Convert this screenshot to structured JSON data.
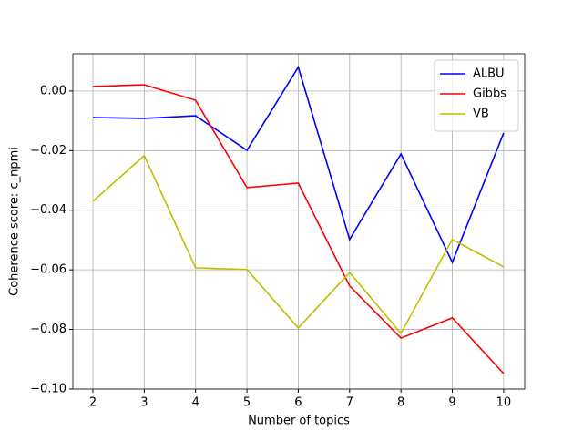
{
  "chart_data": {
    "type": "line",
    "xlabel": "Number of topics",
    "ylabel": "Coherence score: c_npmi",
    "x": [
      2,
      3,
      4,
      5,
      6,
      7,
      8,
      9,
      10
    ],
    "series": [
      {
        "name": "ALBU",
        "color": "#0000ff",
        "values": [
          -0.0089,
          -0.0092,
          -0.0083,
          -0.0199,
          0.008,
          -0.0498,
          -0.0211,
          -0.0575,
          -0.0141
        ]
      },
      {
        "name": "Gibbs",
        "color": "#ff0000",
        "values": [
          0.0015,
          0.0021,
          -0.0031,
          -0.0324,
          -0.0309,
          -0.0654,
          -0.0829,
          -0.0761,
          -0.0948
        ]
      },
      {
        "name": "VB",
        "color": "#bfbf00",
        "values": [
          -0.037,
          -0.0217,
          -0.0593,
          -0.0599,
          -0.0795,
          -0.0609,
          -0.0813,
          -0.0498,
          -0.059
        ]
      }
    ],
    "xlim": [
      1.61,
      10.41
    ],
    "ylim": [
      -0.1,
      0.0125
    ],
    "xticks": [
      2,
      3,
      4,
      5,
      6,
      7,
      8,
      9,
      10
    ],
    "yticks": [
      {
        "value": -0.1,
        "label": "−0.10"
      },
      {
        "value": -0.08,
        "label": "−0.08"
      },
      {
        "value": -0.06,
        "label": "−0.06"
      },
      {
        "value": -0.04,
        "label": "−0.04"
      },
      {
        "value": -0.02,
        "label": "−0.02"
      },
      {
        "value": 0,
        "label": "0.00"
      }
    ],
    "grid": true,
    "legend": "upper right"
  }
}
